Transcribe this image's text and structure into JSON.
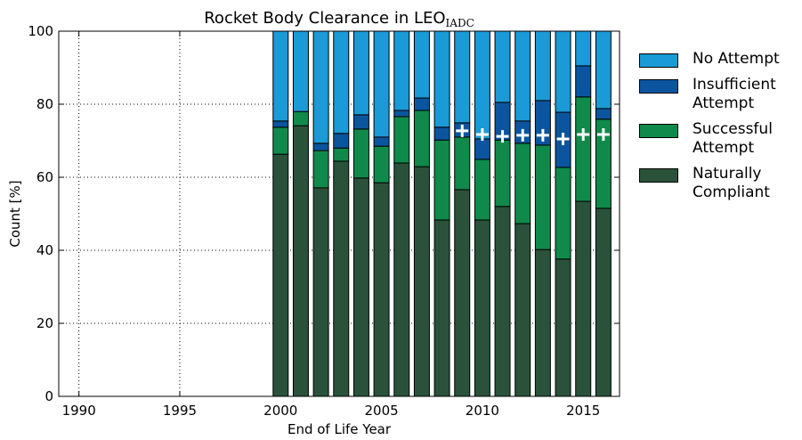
{
  "chart_data": {
    "type": "stacked_bar",
    "title": "Rocket Body Clearance in LEO",
    "title_subscript": "IADC",
    "xlabel": "End of Life Year",
    "ylabel": "Count [%]",
    "x": [
      2000,
      2001,
      2002,
      2003,
      2004,
      2005,
      2006,
      2007,
      2008,
      2009,
      2010,
      2011,
      2012,
      2013,
      2014,
      2015,
      2016
    ],
    "series": [
      {
        "name": "Naturally Compliant",
        "color": "#2a523a",
        "values": [
          66.3,
          74.1,
          57.1,
          64.4,
          59.8,
          58.5,
          63.9,
          62.9,
          48.3,
          56.6,
          48.3,
          52.0,
          47.3,
          40.2,
          37.6,
          53.4,
          51.5
        ]
      },
      {
        "name": "Successful Attempt",
        "color": "#0f8a4a",
        "values": [
          7.4,
          3.9,
          10.2,
          3.6,
          13.4,
          10.0,
          12.7,
          15.4,
          21.9,
          14.4,
          16.6,
          18.2,
          22.0,
          28.6,
          25.1,
          28.6,
          24.4
        ]
      },
      {
        "name": "Insufficient Attempt",
        "color": "#0b559f",
        "values": [
          1.7,
          0,
          2.0,
          4.0,
          3.9,
          2.5,
          1.7,
          3.4,
          3.5,
          3.9,
          5.6,
          10.3,
          6.1,
          12.2,
          15.1,
          8.5,
          2.9
        ]
      },
      {
        "name": "No Attempt",
        "color": "#1a9ad6",
        "values": [
          24.6,
          22.0,
          30.7,
          28.0,
          22.9,
          29.0,
          21.7,
          18.3,
          26.3,
          25.1,
          29.5,
          19.5,
          24.6,
          19.0,
          22.2,
          9.5,
          21.2
        ]
      }
    ],
    "markers": {
      "color": "#ffffff",
      "x": [
        2009,
        2010,
        2011,
        2012,
        2013,
        2014,
        2015,
        2016
      ],
      "values": [
        72.7,
        71.7,
        71.2,
        71.5,
        71.5,
        70.5,
        71.7,
        71.7
      ]
    },
    "xlim": [
      1989,
      2016.8
    ],
    "xticks": [
      1990,
      1995,
      2000,
      2005,
      2010,
      2015
    ],
    "ylim": [
      0,
      100
    ],
    "yticks": [
      0,
      20,
      40,
      60,
      80,
      100
    ],
    "grid": true,
    "legend": "right"
  }
}
